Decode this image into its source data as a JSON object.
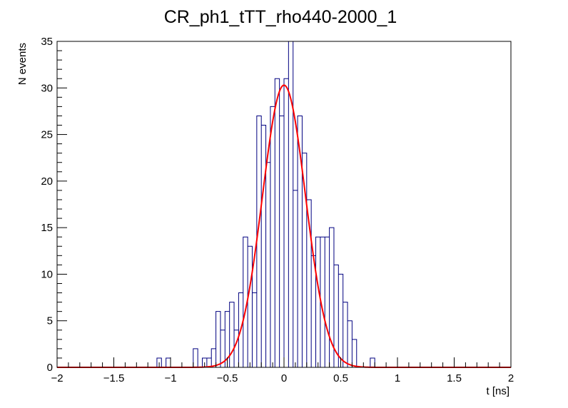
{
  "chart_data": {
    "type": "histogram",
    "title": "CR_ph1_tTT_rho440-2000_1",
    "xlabel": "t [ns]",
    "ylabel": "N events",
    "xlim": [
      -2,
      2
    ],
    "ylim": [
      0,
      35
    ],
    "x_ticks": [
      -2,
      -1.5,
      -1,
      -0.5,
      0,
      0.5,
      1,
      1.5,
      2
    ],
    "x_tick_labels": [
      "−2",
      "−1.5",
      "−1",
      "−0.5",
      "0",
      "0.5",
      "1",
      "1.5",
      "2"
    ],
    "y_ticks": [
      0,
      5,
      10,
      15,
      20,
      25,
      30,
      35
    ],
    "y_tick_labels": [
      "0",
      "5",
      "10",
      "15",
      "20",
      "25",
      "30",
      "35"
    ],
    "bin_width": 0.04,
    "bins": [
      {
        "x": -1.12,
        "count": 1
      },
      {
        "x": -1.04,
        "count": 1
      },
      {
        "x": -0.8,
        "count": 2
      },
      {
        "x": -0.72,
        "count": 1
      },
      {
        "x": -0.68,
        "count": 1
      },
      {
        "x": -0.64,
        "count": 2
      },
      {
        "x": -0.6,
        "count": 6
      },
      {
        "x": -0.56,
        "count": 4
      },
      {
        "x": -0.52,
        "count": 6
      },
      {
        "x": -0.48,
        "count": 7
      },
      {
        "x": -0.44,
        "count": 4
      },
      {
        "x": -0.4,
        "count": 8
      },
      {
        "x": -0.36,
        "count": 14
      },
      {
        "x": -0.32,
        "count": 13
      },
      {
        "x": -0.28,
        "count": 8
      },
      {
        "x": -0.24,
        "count": 27
      },
      {
        "x": -0.2,
        "count": 26
      },
      {
        "x": -0.16,
        "count": 22
      },
      {
        "x": -0.12,
        "count": 28
      },
      {
        "x": -0.08,
        "count": 31
      },
      {
        "x": -0.04,
        "count": 27
      },
      {
        "x": 0.0,
        "count": 31
      },
      {
        "x": 0.04,
        "count": 35
      },
      {
        "x": 0.08,
        "count": 19
      },
      {
        "x": 0.12,
        "count": 27
      },
      {
        "x": 0.16,
        "count": 23
      },
      {
        "x": 0.2,
        "count": 18
      },
      {
        "x": 0.24,
        "count": 12
      },
      {
        "x": 0.28,
        "count": 14
      },
      {
        "x": 0.32,
        "count": 14
      },
      {
        "x": 0.36,
        "count": 14
      },
      {
        "x": 0.4,
        "count": 15
      },
      {
        "x": 0.44,
        "count": 11
      },
      {
        "x": 0.48,
        "count": 10
      },
      {
        "x": 0.52,
        "count": 7
      },
      {
        "x": 0.56,
        "count": 5
      },
      {
        "x": 0.6,
        "count": 3
      },
      {
        "x": 0.64,
        "count": 0
      },
      {
        "x": 0.76,
        "count": 1
      }
    ],
    "fit": {
      "function": "gaussian",
      "amplitude": 30.3,
      "mean": 0.0,
      "sigma": 0.19,
      "color": "#ff0000"
    },
    "histogram_color": "#000080",
    "grid": false
  }
}
